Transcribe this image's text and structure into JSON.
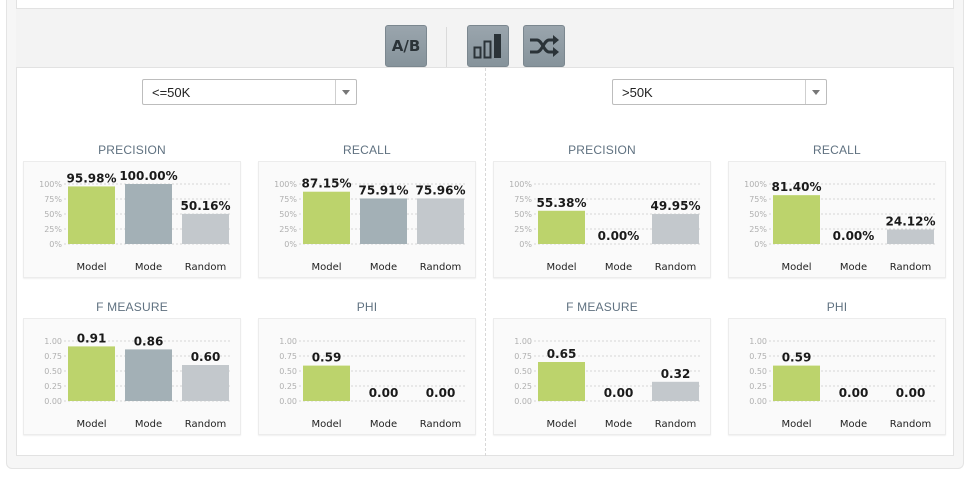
{
  "toolbar": {
    "ab_label": "A/B",
    "icons": [
      "ab-test-icon",
      "bar-chart-icon",
      "shuffle-icon"
    ],
    "button_color": "#8f9ba3"
  },
  "colors": {
    "model": "#bcd36c",
    "mode": "#a3b0b6",
    "random": "#c3c8cc"
  },
  "panels": [
    {
      "class_label": "<=50K"
    },
    {
      "class_label": ">50K"
    }
  ],
  "chart_data": [
    {
      "type": "bar",
      "title": "PRECISION",
      "categories": [
        "Model",
        "Mode",
        "Random"
      ],
      "values": [
        95.98,
        100.0,
        50.16
      ],
      "labels": [
        "95.98%",
        "100.00%",
        "50.16%"
      ],
      "ylim": [
        0,
        100
      ],
      "yticks": [
        "100%",
        "75%",
        "50%",
        "25%",
        "0%"
      ],
      "grid": true
    },
    {
      "type": "bar",
      "title": "RECALL",
      "categories": [
        "Model",
        "Mode",
        "Random"
      ],
      "values": [
        87.15,
        75.91,
        75.96
      ],
      "labels": [
        "87.15%",
        "75.91%",
        "75.96%"
      ],
      "ylim": [
        0,
        100
      ],
      "yticks": [
        "100%",
        "75%",
        "50%",
        "25%",
        "0%"
      ],
      "grid": true
    },
    {
      "type": "bar",
      "title": "PRECISION",
      "categories": [
        "Model",
        "Mode",
        "Random"
      ],
      "values": [
        55.38,
        0.0,
        49.95
      ],
      "labels": [
        "55.38%",
        "0.00%",
        "49.95%"
      ],
      "ylim": [
        0,
        100
      ],
      "yticks": [
        "100%",
        "75%",
        "50%",
        "25%",
        "0%"
      ],
      "grid": true
    },
    {
      "type": "bar",
      "title": "RECALL",
      "categories": [
        "Model",
        "Mode",
        "Random"
      ],
      "values": [
        81.4,
        0.0,
        24.12
      ],
      "labels": [
        "81.40%",
        "0.00%",
        "24.12%"
      ],
      "ylim": [
        0,
        100
      ],
      "yticks": [
        "100%",
        "75%",
        "50%",
        "25%",
        "0%"
      ],
      "grid": true
    },
    {
      "type": "bar",
      "title": "F MEASURE",
      "categories": [
        "Model",
        "Mode",
        "Random"
      ],
      "values": [
        0.91,
        0.86,
        0.6
      ],
      "labels": [
        "0.91",
        "0.86",
        "0.60"
      ],
      "ylim": [
        0,
        1
      ],
      "yticks": [
        "1.00",
        "0.75",
        "0.50",
        "0.25",
        "0.00"
      ],
      "grid": true
    },
    {
      "type": "bar",
      "title": "PHI",
      "categories": [
        "Model",
        "Mode",
        "Random"
      ],
      "values": [
        0.59,
        0.0,
        0.0
      ],
      "labels": [
        "0.59",
        "0.00",
        "0.00"
      ],
      "ylim": [
        0,
        1
      ],
      "yticks": [
        "1.00",
        "0.75",
        "0.50",
        "0.25",
        "0.00"
      ],
      "grid": true
    },
    {
      "type": "bar",
      "title": "F MEASURE",
      "categories": [
        "Model",
        "Mode",
        "Random"
      ],
      "values": [
        0.65,
        0.0,
        0.32
      ],
      "labels": [
        "0.65",
        "0.00",
        "0.32"
      ],
      "ylim": [
        0,
        1
      ],
      "yticks": [
        "1.00",
        "0.75",
        "0.50",
        "0.25",
        "0.00"
      ],
      "grid": true
    },
    {
      "type": "bar",
      "title": "PHI",
      "categories": [
        "Model",
        "Mode",
        "Random"
      ],
      "values": [
        0.59,
        0.0,
        0.0
      ],
      "labels": [
        "0.59",
        "0.00",
        "0.00"
      ],
      "ylim": [
        0,
        1
      ],
      "yticks": [
        "1.00",
        "0.75",
        "0.50",
        "0.25",
        "0.00"
      ],
      "grid": true
    }
  ]
}
